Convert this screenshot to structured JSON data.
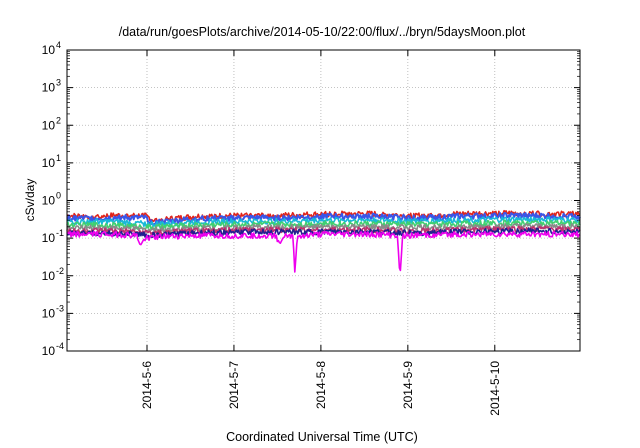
{
  "chart_data": {
    "type": "line",
    "title": "/data/run/goesPlots/archive/2014-05-10/22:00/flux/../bryn/5daysMoon.plot",
    "xlabel": "Coordinated Universal Time (UTC)",
    "ylabel": "cSv/day",
    "yscale": "log",
    "ylim": [
      0.0001,
      10000
    ],
    "xlim": [
      0,
      5.9
    ],
    "grid": true,
    "y_ticks": [
      {
        "base": "10",
        "exp": "-4",
        "value": 0.0001
      },
      {
        "base": "10",
        "exp": "-3",
        "value": 0.001
      },
      {
        "base": "10",
        "exp": "-2",
        "value": 0.01
      },
      {
        "base": "10",
        "exp": "-1",
        "value": 0.1
      },
      {
        "base": "10",
        "exp": "0",
        "value": 1
      },
      {
        "base": "10",
        "exp": "1",
        "value": 10
      },
      {
        "base": "10",
        "exp": "2",
        "value": 100
      },
      {
        "base": "10",
        "exp": "3",
        "value": 1000
      },
      {
        "base": "10",
        "exp": "4",
        "value": 10000
      }
    ],
    "x_ticks": [
      {
        "label": "2014-5-6",
        "value": 0.92
      },
      {
        "label": "2014-5-7",
        "value": 1.92
      },
      {
        "label": "2014-5-8",
        "value": 2.92
      },
      {
        "label": "2014-5-9",
        "value": 3.92
      },
      {
        "label": "2014-5-10",
        "value": 4.92
      }
    ],
    "series": [
      {
        "color": "#e0241b",
        "base": 0.42,
        "x": [
          0.0,
          0.3,
          0.6,
          0.9,
          1.0,
          1.5,
          2.0,
          2.5,
          3.0,
          3.5,
          4.0,
          4.5,
          5.0,
          5.5,
          5.9
        ],
        "y": [
          0.4,
          0.39,
          0.41,
          0.4,
          0.3,
          0.39,
          0.4,
          0.41,
          0.45,
          0.45,
          0.4,
          0.45,
          0.47,
          0.46,
          0.45
        ]
      },
      {
        "color": "#3a55e8",
        "base": 0.36,
        "x": [
          0.0,
          0.3,
          0.6,
          0.9,
          1.0,
          1.5,
          2.0,
          2.5,
          3.0,
          3.5,
          4.0,
          4.5,
          5.0,
          5.5,
          5.9
        ],
        "y": [
          0.35,
          0.34,
          0.36,
          0.35,
          0.26,
          0.34,
          0.35,
          0.36,
          0.39,
          0.39,
          0.35,
          0.39,
          0.41,
          0.4,
          0.39
        ]
      },
      {
        "color": "#18b8d8",
        "base": 0.29,
        "x": [
          0.0,
          0.5,
          1.0,
          1.5,
          2.0,
          2.5,
          3.0,
          3.5,
          4.0,
          4.5,
          5.0,
          5.5,
          5.9
        ],
        "y": [
          0.28,
          0.28,
          0.24,
          0.28,
          0.29,
          0.29,
          0.31,
          0.31,
          0.29,
          0.31,
          0.32,
          0.32,
          0.31
        ]
      },
      {
        "color": "#40d070",
        "base": 0.24,
        "x": [
          0.0,
          0.5,
          1.0,
          1.5,
          2.0,
          2.5,
          3.0,
          3.5,
          4.0,
          4.5,
          5.0,
          5.5,
          5.9
        ],
        "y": [
          0.23,
          0.23,
          0.2,
          0.23,
          0.24,
          0.24,
          0.25,
          0.25,
          0.24,
          0.25,
          0.26,
          0.26,
          0.25
        ]
      },
      {
        "color": "#8a8a8a",
        "base": 0.2,
        "x": [
          0.0,
          0.5,
          1.0,
          1.5,
          2.0,
          2.5,
          3.0,
          3.5,
          4.0,
          4.5,
          5.0,
          5.5,
          5.9
        ],
        "y": [
          0.19,
          0.19,
          0.17,
          0.19,
          0.2,
          0.2,
          0.2,
          0.2,
          0.2,
          0.2,
          0.21,
          0.21,
          0.21
        ]
      },
      {
        "color": "#c03070",
        "base": 0.17,
        "x": [
          0.0,
          0.5,
          1.0,
          1.5,
          2.0,
          2.5,
          3.0,
          3.5,
          4.0,
          4.5,
          5.0,
          5.5,
          5.9
        ],
        "y": [
          0.16,
          0.16,
          0.14,
          0.16,
          0.17,
          0.17,
          0.17,
          0.17,
          0.16,
          0.17,
          0.18,
          0.18,
          0.17
        ]
      },
      {
        "color": "#202090",
        "base": 0.15,
        "x": [
          0.0,
          0.5,
          1.0,
          1.5,
          2.0,
          2.5,
          3.0,
          3.5,
          4.0,
          4.5,
          5.0,
          5.5,
          5.9
        ],
        "y": [
          0.14,
          0.14,
          0.125,
          0.14,
          0.15,
          0.15,
          0.15,
          0.15,
          0.14,
          0.15,
          0.16,
          0.16,
          0.15
        ]
      },
      {
        "color": "#ee00ee",
        "base": 0.13,
        "x": [
          0.0,
          0.5,
          0.8,
          0.85,
          0.9,
          1.0,
          1.5,
          2.4,
          2.45,
          2.5,
          2.6,
          2.62,
          2.65,
          3.0,
          3.5,
          3.8,
          3.83,
          3.86,
          4.0,
          4.5,
          5.0,
          5.5,
          5.9
        ],
        "y": [
          0.13,
          0.13,
          0.12,
          0.065,
          0.1,
          0.11,
          0.12,
          0.12,
          0.07,
          0.12,
          0.12,
          0.012,
          0.12,
          0.13,
          0.13,
          0.12,
          0.009,
          0.12,
          0.12,
          0.13,
          0.13,
          0.13,
          0.13
        ]
      }
    ]
  }
}
